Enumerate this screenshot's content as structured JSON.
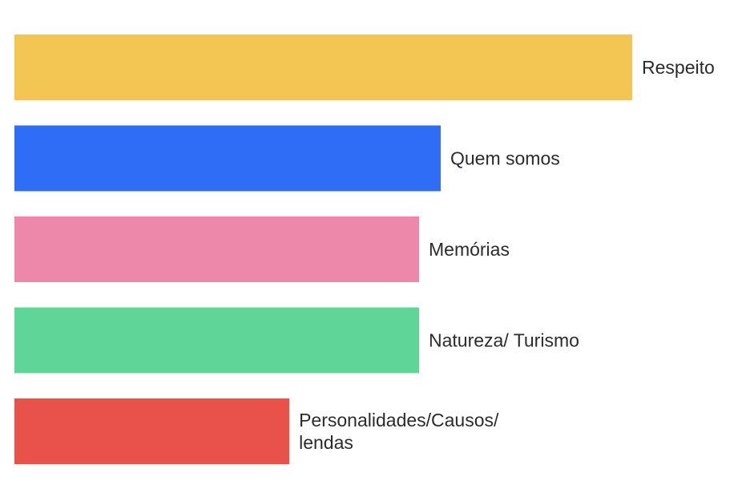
{
  "chart_data": {
    "type": "bar",
    "orientation": "horizontal",
    "title": "",
    "xlabel": "",
    "ylabel": "",
    "grid": false,
    "legend": "none",
    "categories": [
      "Respeito",
      "Quem somos",
      "Memórias",
      "Natureza/ Turismo",
      "Personalidades/Causos/ lendas"
    ],
    "label_lines": [
      [
        "Respeito"
      ],
      [
        "Quem somos"
      ],
      [
        "Memórias"
      ],
      [
        "Natureza/ Turismo"
      ],
      [
        "Personalidades/Causos/",
        "lendas"
      ]
    ],
    "values": [
      100,
      69,
      65.5,
      65.5,
      44.5
    ],
    "colors": [
      "#F3C553",
      "#2F6DF6",
      "#EE88AA",
      "#5FD698",
      "#E8524A"
    ],
    "xlim": [
      0,
      100
    ]
  }
}
